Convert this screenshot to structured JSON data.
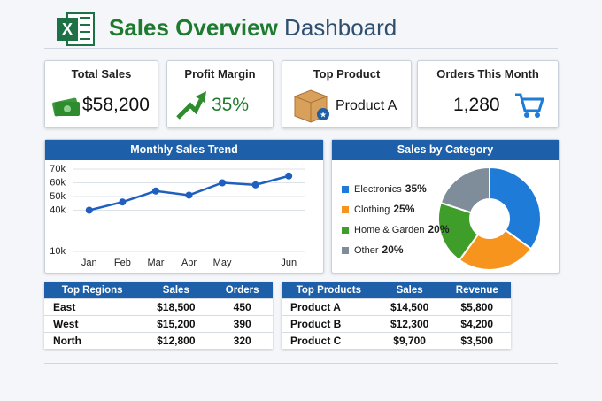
{
  "header": {
    "title_main": "Sales Overview",
    "title_rest": "Dashboard"
  },
  "kpis": [
    {
      "label": "Total Sales",
      "value": "$58,200"
    },
    {
      "label": "Profit Margin",
      "value": "35%"
    },
    {
      "label": "Top Product",
      "value": "Product A"
    },
    {
      "label": "Orders This Month",
      "value": "1,280"
    }
  ],
  "chart_data": [
    {
      "type": "line",
      "title": "Monthly Sales Trend",
      "categories": [
        "Jan",
        "Feb",
        "Mar",
        "Apr",
        "May",
        null,
        "Jun"
      ],
      "values": [
        40000,
        46000,
        54000,
        51000,
        60000,
        58500,
        65000
      ],
      "color": "#1f5fbf",
      "ylim": [
        10000,
        70000
      ],
      "yticks": [
        {
          "value": 10000,
          "label": "10k"
        },
        {
          "value": 40000,
          "label": "40k"
        },
        {
          "value": 50000,
          "label": "50k"
        },
        {
          "value": 60000,
          "label": "60k"
        },
        {
          "value": 70000,
          "label": "70k"
        }
      ],
      "grid": true
    },
    {
      "type": "pie",
      "title": "Sales by Category",
      "categories": [
        "Electronics",
        "Clothing",
        "Home & Garden",
        "Other"
      ],
      "values": [
        35,
        25,
        20,
        20
      ],
      "value_labels": [
        "35%",
        "25%",
        "20%",
        "20%"
      ],
      "colors": [
        "#1e7bd8",
        "#f7941d",
        "#3f9e2a",
        "#7f8c9a"
      ]
    }
  ],
  "tables": [
    {
      "header": [
        "Top Regions",
        "Sales",
        "Orders"
      ],
      "rows": [
        [
          "East",
          "$18,500",
          "450"
        ],
        [
          "West",
          "$15,200",
          "390"
        ],
        [
          "North",
          "$12,800",
          "320"
        ]
      ]
    },
    {
      "header": [
        "Top Products",
        "Sales",
        "Revenue"
      ],
      "rows": [
        [
          "Product A",
          "$14,500",
          "$5,800"
        ],
        [
          "Product B",
          "$12,300",
          "$4,200"
        ],
        [
          "Product C",
          "$9,700",
          "$3,500"
        ]
      ]
    }
  ]
}
